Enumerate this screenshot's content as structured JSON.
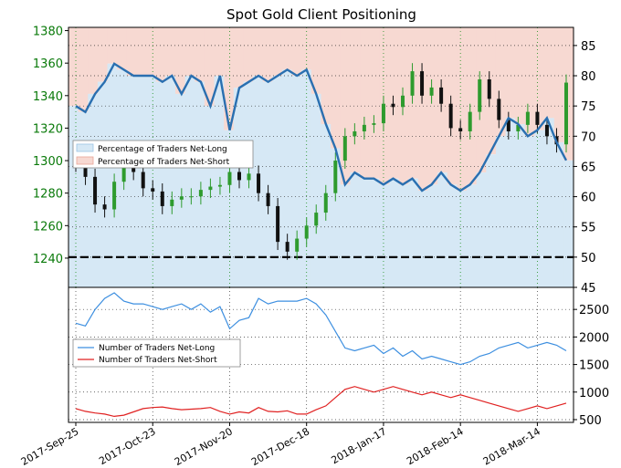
{
  "title": "Spot Gold Client Positioning",
  "colors": {
    "candle_up": "#2e9b2e",
    "candle_down": "#111111",
    "net_long_band": "#d6e8f5",
    "net_short_band": "#f7d9d2",
    "pct_line": "#2a6fb0",
    "count_long": "#3d8fe0",
    "count_short": "#e02020",
    "price_axis": "#0a7a0a"
  },
  "chart_data": [
    {
      "type": "line",
      "name": "upper-panel",
      "x": [
        "2017-Sep-25",
        "2017-Sep-28",
        "2017-Oct-02",
        "2017-Oct-05",
        "2017-Oct-09",
        "2017-Oct-12",
        "2017-Oct-16",
        "2017-Oct-19",
        "2017-Oct-23",
        "2017-Oct-26",
        "2017-Oct-30",
        "2017-Nov-02",
        "2017-Nov-06",
        "2017-Nov-09",
        "2017-Nov-13",
        "2017-Nov-16",
        "2017-Nov-20",
        "2017-Nov-23",
        "2017-Nov-27",
        "2017-Nov-30",
        "2017-Dec-04",
        "2017-Dec-07",
        "2017-Dec-11",
        "2017-Dec-14",
        "2017-Dec-18",
        "2017-Dec-21",
        "2017-Dec-25",
        "2017-Dec-28",
        "2018-Jan-01",
        "2018-Jan-04",
        "2018-Jan-08",
        "2018-Jan-11",
        "2018-Jan-15",
        "2018-Jan-18",
        "2018-Jan-22",
        "2018-Jan-25",
        "2018-Jan-29",
        "2018-Feb-01",
        "2018-Feb-05",
        "2018-Feb-08",
        "2018-Feb-12",
        "2018-Feb-15",
        "2018-Feb-19",
        "2018-Feb-22",
        "2018-Feb-26",
        "2018-Mar-01",
        "2018-Mar-05",
        "2018-Mar-08",
        "2018-Mar-12",
        "2018-Mar-15",
        "2018-Mar-19",
        "2018-Mar-21"
      ],
      "price": [
        1298,
        1290,
        1273,
        1270,
        1287,
        1297,
        1293,
        1283,
        1281,
        1272,
        1276,
        1278,
        1278,
        1282,
        1284,
        1285,
        1293,
        1288,
        1292,
        1280,
        1272,
        1250,
        1244,
        1252,
        1260,
        1268,
        1280,
        1300,
        1315,
        1318,
        1322,
        1323,
        1335,
        1333,
        1340,
        1355,
        1340,
        1345,
        1335,
        1320,
        1318,
        1330,
        1350,
        1338,
        1325,
        1318,
        1322,
        1330,
        1322,
        1315,
        1310,
        1348
      ],
      "pct_net_long": [
        75,
        74,
        77,
        79,
        82,
        81,
        80,
        80,
        80,
        79,
        80,
        77,
        80,
        79,
        75,
        80,
        71,
        78,
        79,
        80,
        79,
        80,
        81,
        80,
        81,
        77,
        72,
        68,
        62,
        64,
        63,
        63,
        62,
        63,
        62,
        63,
        61,
        62,
        64,
        62,
        61,
        62,
        64,
        67,
        70,
        73,
        72,
        70,
        71,
        73,
        69,
        66
      ],
      "y_left_ticks": [
        "1380",
        "1360",
        "1340",
        "1320",
        "1300",
        "1280",
        "1260",
        "1240"
      ],
      "y_right_ticks": [
        "85",
        "80",
        "75",
        "70",
        "65",
        "60",
        "55",
        "50",
        "45"
      ],
      "ylim_price": [
        1222,
        1382
      ],
      "ylim_pct": [
        45,
        88
      ],
      "reference_line": 50,
      "legend": [
        "Percentage of Traders Net-Long",
        "Percentage of Traders Net-Short"
      ],
      "legend_position": "middle-left",
      "grid": true
    },
    {
      "type": "line",
      "name": "lower-panel",
      "series": [
        {
          "name": "Number of Traders Net-Long",
          "values": [
            2250,
            2200,
            2500,
            2700,
            2800,
            2650,
            2600,
            2600,
            2550,
            2500,
            2550,
            2600,
            2500,
            2600,
            2450,
            2550,
            2150,
            2300,
            2350,
            2700,
            2600,
            2650,
            2650,
            2650,
            2700,
            2600,
            2400,
            2100,
            1800,
            1750,
            1800,
            1850,
            1700,
            1800,
            1650,
            1750,
            1600,
            1650,
            1600,
            1550,
            1500,
            1550,
            1650,
            1700,
            1800,
            1850,
            1900,
            1800,
            1850,
            1900,
            1850,
            1750
          ]
        },
        {
          "name": "Number of Traders Net-Short",
          "values": [
            700,
            650,
            620,
            600,
            560,
            580,
            640,
            700,
            720,
            730,
            700,
            680,
            690,
            700,
            720,
            650,
            600,
            640,
            620,
            720,
            650,
            640,
            660,
            600,
            600,
            680,
            750,
            900,
            1050,
            1100,
            1050,
            1000,
            1050,
            1100,
            1050,
            1000,
            950,
            1000,
            950,
            900,
            950,
            900,
            850,
            800,
            750,
            700,
            650,
            700,
            750,
            700,
            750,
            800
          ]
        }
      ],
      "y_ticks": [
        "2500",
        "2000",
        "1500",
        "1000",
        "500"
      ],
      "ylim": [
        450,
        2900
      ],
      "x_tick_labels": [
        "2017-Sep-25",
        "2017-Oct-23",
        "2017-Nov-20",
        "2017-Dec-18",
        "2018-Jan-17",
        "2018-Feb-14",
        "2018-Mar-14"
      ],
      "legend_position": "middle-left",
      "grid": true
    }
  ]
}
